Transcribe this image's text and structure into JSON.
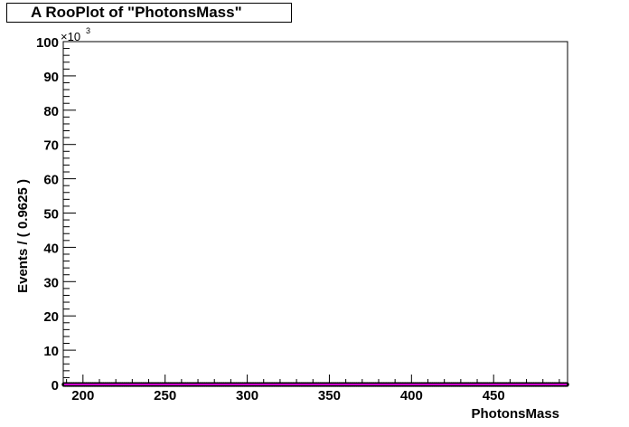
{
  "chart_data": {
    "type": "scatter",
    "title": "A RooPlot of \"PhotonsMass\"",
    "xlabel": "PhotonsMass",
    "ylabel": "Events / ( 0.9625 )",
    "y_multiplier": "×10",
    "y_multiplier_exponent": "3",
    "xlim": [
      188,
      495
    ],
    "ylim": [
      0,
      100
    ],
    "x_ticks": [
      200,
      250,
      300,
      350,
      400,
      450
    ],
    "y_ticks": [
      0,
      10,
      20,
      30,
      40,
      50,
      60,
      70,
      80,
      90,
      100
    ],
    "grid": false,
    "series": [
      {
        "marker_color": "#000000",
        "line_color": "#cc00cc",
        "x_start": 188.48,
        "x_step": 0.9625,
        "count": 319,
        "y_value": 0
      }
    ]
  }
}
